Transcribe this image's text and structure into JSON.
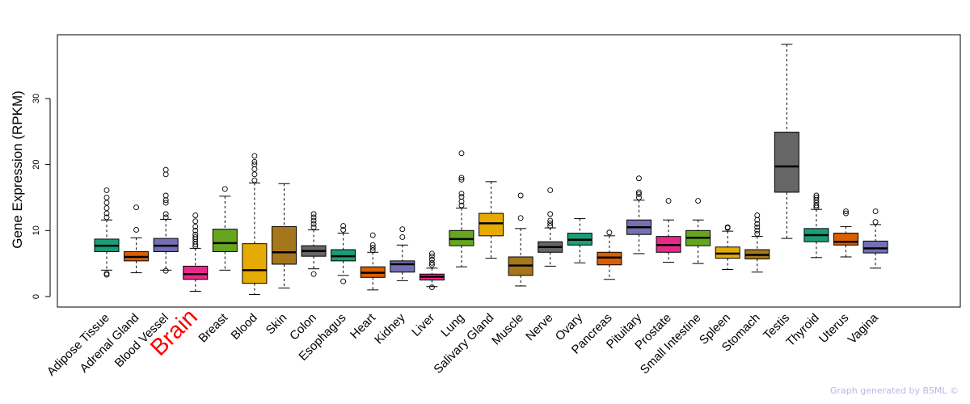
{
  "chart_data": {
    "type": "boxplot",
    "title": "",
    "xlabel": "",
    "ylabel": "Gene Expression (RPKM)",
    "ylim": [
      -0.5,
      40
    ],
    "yticks": [
      0,
      10,
      20,
      30
    ],
    "highlight_category": "Brain",
    "highlight_color": "#ff0000",
    "categories": [
      "Adipose Tissue",
      "Adrenal Gland",
      "Blood Vessel",
      "Brain",
      "Breast",
      "Blood",
      "Skin",
      "Colon",
      "Esophagus",
      "Heart",
      "Kidney",
      "Liver",
      "Lung",
      "Salivary Gland",
      "Muscle",
      "Nerve",
      "Ovary",
      "Pancreas",
      "Pituitary",
      "Prostate",
      "Small Intestine",
      "Spleen",
      "Stomach",
      "Testis",
      "Thyroid",
      "Uterus",
      "Vagina"
    ],
    "colors": [
      "#1b9e77",
      "#d95f02",
      "#7570b3",
      "#e7298a",
      "#66a61e",
      "#e6ab02",
      "#a6761d",
      "#666666",
      "#1b9e77",
      "#d95f02",
      "#7570b3",
      "#e7298a",
      "#66a61e",
      "#e6ab02",
      "#a6761d",
      "#666666",
      "#1b9e77",
      "#d95f02",
      "#7570b3",
      "#e7298a",
      "#66a61e",
      "#e6ab02",
      "#a6761d",
      "#666666",
      "#1b9e77",
      "#d95f02",
      "#7570b3"
    ],
    "boxes": [
      {
        "min": 4.0,
        "q1": 6.8,
        "median": 7.7,
        "q3": 8.7,
        "max": 11.6,
        "outliers": [
          3.3,
          3.5,
          12.0,
          12.6,
          13.4,
          14.2,
          15.0,
          16.1
        ]
      },
      {
        "min": 3.6,
        "q1": 5.4,
        "median": 6.0,
        "q3": 6.8,
        "max": 8.9,
        "outliers": [
          10.1,
          13.5
        ]
      },
      {
        "min": 4.0,
        "q1": 6.8,
        "median": 7.7,
        "q3": 8.8,
        "max": 11.7,
        "outliers": [
          3.9,
          12.0,
          12.5,
          14.2,
          14.6,
          15.3,
          18.5,
          19.2
        ]
      },
      {
        "min": 0.8,
        "q1": 2.6,
        "median": 3.4,
        "q3": 4.6,
        "max": 7.3,
        "outliers": [
          7.6,
          7.9,
          8.3,
          8.7,
          9.0,
          9.4,
          10.0,
          10.6,
          11.4,
          12.3
        ]
      },
      {
        "min": 4.0,
        "q1": 6.8,
        "median": 8.1,
        "q3": 10.2,
        "max": 15.2,
        "outliers": [
          16.3
        ]
      },
      {
        "min": 0.3,
        "q1": 2.0,
        "median": 4.0,
        "q3": 8.0,
        "max": 17.2,
        "outliers": [
          17.6,
          18.5,
          19.3,
          20.0,
          20.4,
          21.3
        ]
      },
      {
        "min": 1.3,
        "q1": 4.9,
        "median": 6.7,
        "q3": 10.6,
        "max": 17.1,
        "outliers": []
      },
      {
        "min": 4.2,
        "q1": 6.1,
        "median": 6.9,
        "q3": 7.7,
        "max": 10.1,
        "outliers": [
          3.4,
          10.5,
          11.0,
          11.5,
          12.0,
          12.5
        ]
      },
      {
        "min": 3.2,
        "q1": 5.4,
        "median": 6.1,
        "q3": 7.1,
        "max": 9.6,
        "outliers": [
          2.3,
          10.1,
          10.7
        ]
      },
      {
        "min": 1.0,
        "q1": 2.9,
        "median": 3.6,
        "q3": 4.5,
        "max": 6.7,
        "outliers": [
          7.0,
          7.4,
          7.8,
          9.3
        ]
      },
      {
        "min": 2.4,
        "q1": 3.7,
        "median": 4.9,
        "q3": 5.4,
        "max": 7.8,
        "outliers": [
          9.0,
          10.2
        ]
      },
      {
        "min": 1.5,
        "q1": 2.5,
        "median": 3.0,
        "q3": 3.4,
        "max": 4.3,
        "outliers": [
          1.4,
          4.8,
          5.1,
          5.6,
          6.1,
          6.5
        ]
      },
      {
        "min": 4.5,
        "q1": 7.7,
        "median": 8.7,
        "q3": 10.0,
        "max": 13.4,
        "outliers": [
          13.8,
          14.4,
          15.1,
          15.6,
          17.7,
          18.0,
          21.7
        ]
      },
      {
        "min": 5.8,
        "q1": 9.2,
        "median": 11.1,
        "q3": 12.6,
        "max": 17.4,
        "outliers": []
      },
      {
        "min": 1.6,
        "q1": 3.2,
        "median": 4.7,
        "q3": 6.0,
        "max": 10.3,
        "outliers": [
          11.9,
          15.3
        ]
      },
      {
        "min": 4.6,
        "q1": 6.7,
        "median": 7.5,
        "q3": 8.3,
        "max": 10.4,
        "outliers": [
          10.7,
          11.1,
          11.5,
          12.5,
          16.1
        ]
      },
      {
        "min": 5.1,
        "q1": 7.8,
        "median": 8.6,
        "q3": 9.6,
        "max": 11.8,
        "outliers": []
      },
      {
        "min": 2.6,
        "q1": 4.8,
        "median": 5.9,
        "q3": 6.7,
        "max": 9.2,
        "outliers": [
          9.7
        ]
      },
      {
        "min": 6.5,
        "q1": 9.4,
        "median": 10.5,
        "q3": 11.6,
        "max": 14.6,
        "outliers": [
          15.0,
          15.5,
          15.8,
          17.9
        ]
      },
      {
        "min": 5.2,
        "q1": 6.7,
        "median": 7.8,
        "q3": 9.1,
        "max": 11.6,
        "outliers": [
          14.5
        ]
      },
      {
        "min": 5.0,
        "q1": 7.7,
        "median": 8.9,
        "q3": 10.0,
        "max": 11.6,
        "outliers": [
          14.5
        ]
      },
      {
        "min": 4.1,
        "q1": 5.8,
        "median": 6.5,
        "q3": 7.5,
        "max": 9.9,
        "outliers": [
          10.4,
          10.5
        ]
      },
      {
        "min": 3.7,
        "q1": 5.7,
        "median": 6.3,
        "q3": 7.1,
        "max": 9.1,
        "outliers": [
          9.5,
          10.0,
          10.5,
          11.0,
          11.6,
          12.3
        ]
      },
      {
        "min": 8.8,
        "q1": 15.8,
        "median": 19.7,
        "q3": 24.9,
        "max": 38.2,
        "outliers": []
      },
      {
        "min": 5.9,
        "q1": 8.3,
        "median": 9.3,
        "q3": 10.3,
        "max": 13.2,
        "outliers": [
          13.5,
          13.8,
          14.2,
          14.6,
          15.0,
          15.3
        ]
      },
      {
        "min": 6.0,
        "q1": 7.8,
        "median": 8.3,
        "q3": 9.6,
        "max": 10.6,
        "outliers": [
          12.6,
          12.9
        ]
      },
      {
        "min": 4.3,
        "q1": 6.6,
        "median": 7.3,
        "q3": 8.4,
        "max": 10.9,
        "outliers": [
          11.3,
          12.9
        ]
      }
    ]
  },
  "footer": {
    "credit": "Graph generated by BSML ©"
  }
}
